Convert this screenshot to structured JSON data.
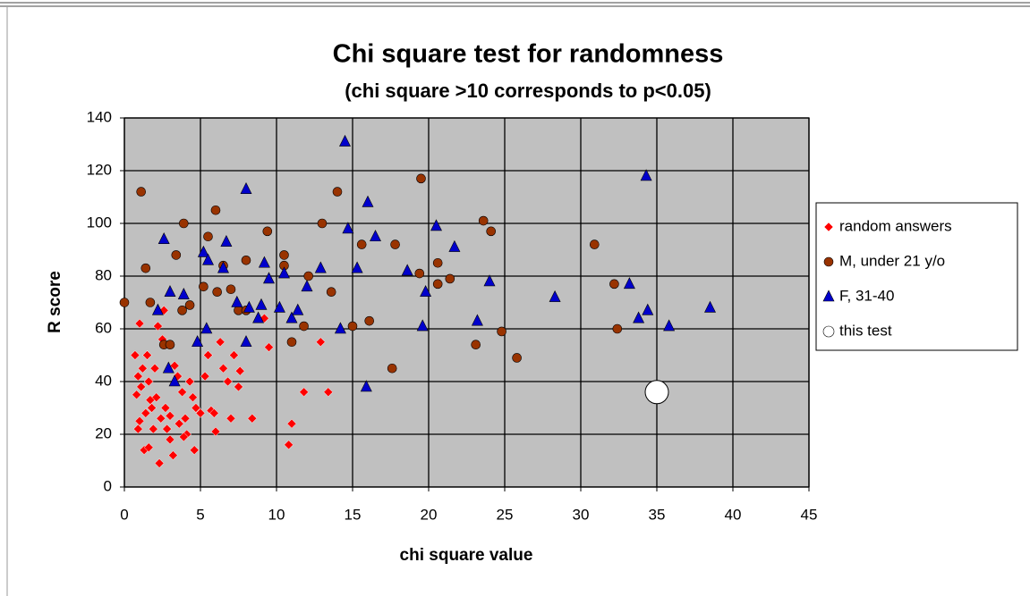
{
  "chart_data": {
    "type": "scatter",
    "title": "Chi square test for randomness",
    "subtitle": "(chi square >10 corresponds to p<0.05)",
    "x_label": "chi square value",
    "y_label": "R score",
    "xlim": [
      0,
      45
    ],
    "xticks": [
      0,
      5,
      10,
      15,
      20,
      25,
      30,
      35,
      40,
      45
    ],
    "ylim": [
      0,
      140
    ],
    "yticks": [
      0,
      20,
      40,
      60,
      80,
      100,
      120,
      140
    ],
    "grid": true,
    "legend": "right",
    "series": [
      {
        "name": "random answers",
        "color": "#ff0000",
        "marker": "diamond",
        "x": [
          0.7,
          1,
          0.9,
          1.2,
          1.5,
          1.6,
          1.8,
          0.8,
          1,
          1.3,
          1.6,
          2,
          2.2,
          2.5,
          2.3,
          2.8,
          3,
          3.2,
          3.3,
          3.5,
          3.8,
          4,
          4.1,
          4.3,
          4.5,
          4.6,
          5,
          5.3,
          5.5,
          5.7,
          6,
          6.3,
          6.5,
          6.8,
          7,
          7.2,
          7.5,
          7.6,
          8.4,
          9.2,
          9.5,
          10.8,
          11,
          11.8,
          12.9,
          13.4,
          1.1,
          1.4,
          2.6,
          2.1,
          2.7,
          3,
          3.6,
          4.7,
          5.9,
          2.4,
          1.9,
          0.9,
          1.7,
          3.9
        ],
        "values": [
          50,
          62,
          42,
          45,
          50,
          40,
          30,
          35,
          25,
          14,
          15,
          45,
          61,
          56,
          9,
          22,
          18,
          12,
          46,
          42,
          36,
          26,
          20,
          40,
          34,
          14,
          28,
          42,
          50,
          29,
          21,
          55,
          45,
          40,
          26,
          50,
          38,
          44,
          26,
          64,
          53,
          16,
          24,
          36,
          55,
          36,
          38,
          28,
          67,
          34,
          30,
          27,
          24,
          30,
          28,
          26,
          22,
          22,
          33,
          19
        ]
      },
      {
        "name": "M, under 21 y/o",
        "color": "#993300",
        "marker": "circle",
        "x": [
          0,
          1.1,
          1.4,
          1.7,
          2.6,
          3,
          3.4,
          3.8,
          3.9,
          4.3,
          5.2,
          5.5,
          6,
          6.1,
          6.5,
          7,
          7.5,
          8,
          8,
          9.4,
          10.5,
          10.5,
          11,
          11.8,
          12.1,
          13,
          13.6,
          14,
          15,
          15.6,
          16.1,
          17.6,
          17.8,
          19.4,
          19.5,
          20.6,
          20.6,
          21.4,
          23.1,
          23.6,
          24.1,
          24.8,
          25.8,
          30.9,
          32.2,
          32.4
        ],
        "values": [
          70,
          112,
          83,
          70,
          54,
          54,
          88,
          67,
          100,
          69,
          76,
          95,
          105,
          74,
          84,
          75,
          67,
          86,
          67,
          97,
          88,
          84,
          55,
          61,
          80,
          100,
          74,
          112,
          61,
          92,
          63,
          45,
          92,
          81,
          117,
          77,
          85,
          79,
          54,
          101,
          97,
          59,
          49,
          92,
          77,
          60
        ]
      },
      {
        "name": "F, 31-40",
        "color": "#0000cc",
        "marker": "triangle",
        "x": [
          2.2,
          2.6,
          2.9,
          3,
          3.3,
          3.9,
          4.8,
          5.2,
          5.4,
          5.5,
          6.5,
          6.7,
          7.4,
          8,
          8,
          8.2,
          8.8,
          9,
          9.2,
          9.5,
          10.2,
          10.5,
          11,
          11.4,
          12,
          12.9,
          14.2,
          14.5,
          14.7,
          15.3,
          15.9,
          16,
          16.5,
          18.6,
          19.6,
          19.8,
          20.5,
          21.7,
          23.2,
          24,
          28.3,
          33.2,
          33.8,
          34.3,
          34.4,
          35.8,
          38.5
        ],
        "values": [
          67,
          94,
          45,
          74,
          40,
          73,
          55,
          89,
          60,
          86,
          83,
          93,
          70,
          113,
          55,
          68,
          64,
          69,
          85,
          79,
          68,
          81,
          64,
          67,
          76,
          83,
          60,
          131,
          98,
          83,
          38,
          108,
          95,
          82,
          61,
          74,
          99,
          91,
          63,
          78,
          72,
          77,
          64,
          118,
          67,
          61,
          68
        ]
      },
      {
        "name": "this test",
        "color": "#ffffff",
        "marker": "big-circle",
        "x": [
          35
        ],
        "values": [
          36
        ]
      }
    ]
  }
}
